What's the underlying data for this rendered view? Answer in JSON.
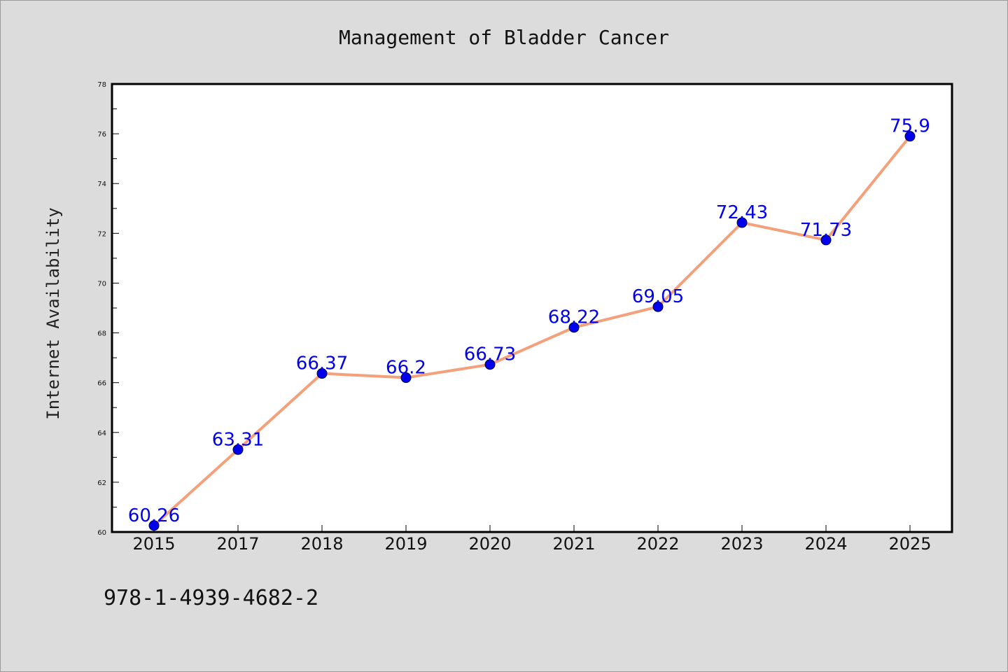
{
  "chart_data": {
    "type": "line",
    "title": "Management of Bladder Cancer",
    "xlabel": "",
    "ylabel": "Internet Availability",
    "categories": [
      "2015",
      "2017",
      "2018",
      "2019",
      "2020",
      "2021",
      "2022",
      "2023",
      "2024",
      "2025"
    ],
    "values": [
      60.26,
      63.31,
      66.37,
      66.2,
      66.73,
      68.22,
      69.05,
      72.43,
      71.73,
      75.9
    ],
    "data_labels": [
      "60.26",
      "63.31",
      "66.37",
      "66.2",
      "66.73",
      "68.22",
      "69.05",
      "72.43",
      "71.73",
      "75.9"
    ],
    "ylim": [
      60,
      78
    ],
    "yticks": [
      "60",
      "62",
      "64",
      "66",
      "68",
      "70",
      "72",
      "74",
      "76",
      "78"
    ],
    "grid": false,
    "line_color": "#f4a07a",
    "marker_color": "#0000ee",
    "label_color": "#0000ee"
  },
  "footer": {
    "isbn": "978-1-4939-4682-2"
  }
}
